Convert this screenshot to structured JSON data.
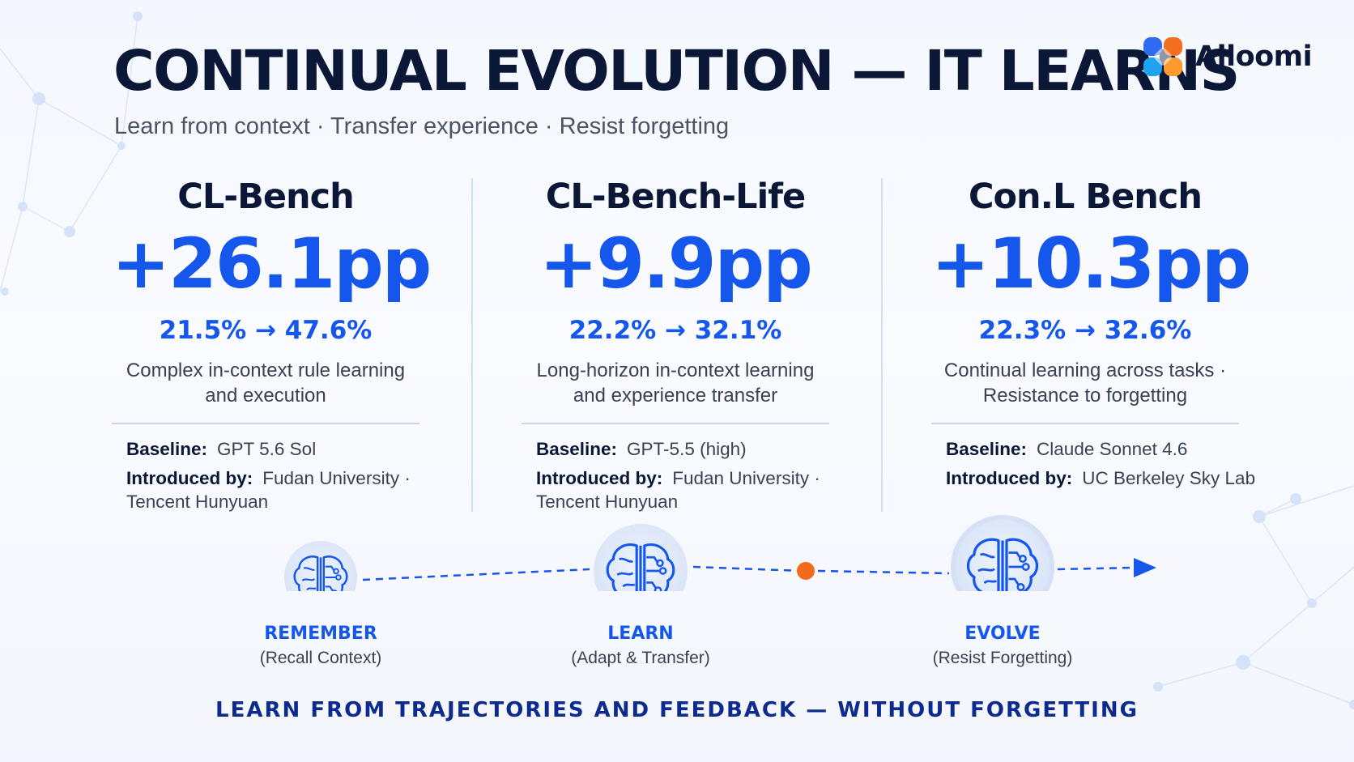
{
  "header": {
    "title": "CONTINUAL EVOLUTION — IT LEARNS",
    "subtitle": "Learn from context · Transfer experience · Resist forgetting"
  },
  "brand": {
    "name": "Alloomi",
    "logo_colors": [
      "#2f6bf1",
      "#f37021",
      "#1fa3f0",
      "#ff9a2e"
    ]
  },
  "colors": {
    "accent": "#1557ec",
    "orange_marker": "#f26a1b",
    "heading": "#0b1736",
    "tagline": "#0d2a8e"
  },
  "benchmarks": [
    {
      "name": "CL-Bench",
      "delta": "+26.1pp",
      "range": "21.5% → 47.6%",
      "desc_lines": [
        "Complex in-context rule learning",
        "and execution"
      ],
      "baseline_label": "Baseline:",
      "baseline": "GPT 5.6 Sol",
      "introduced_label": "Introduced by:",
      "introduced_lines": [
        "Fudan University ·",
        "Tencent Hunyuan"
      ]
    },
    {
      "name": "CL-Bench-Life",
      "delta": "+9.9pp",
      "range": "22.2% → 32.1%",
      "desc_lines": [
        "Long-horizon in-context learning",
        "and experience transfer"
      ],
      "baseline_label": "Baseline:",
      "baseline": "GPT-5.5 (high)",
      "introduced_label": "Introduced by:",
      "introduced_lines": [
        "Fudan University ·",
        "Tencent Hunyuan"
      ]
    },
    {
      "name": "Con.L Bench",
      "delta": "+10.3pp",
      "range": "22.3% → 32.6%",
      "desc_lines": [
        "Continual learning across tasks ·",
        "Resistance to forgetting"
      ],
      "baseline_label": "Baseline:",
      "baseline": "Claude Sonnet 4.6",
      "introduced_label": "Introduced by:",
      "introduced_lines": [
        "UC Berkeley Sky Lab"
      ]
    }
  ],
  "timeline": {
    "stages": [
      {
        "name": "REMEMBER",
        "sub": "(Recall Context)",
        "icon": "brain-circuit-icon"
      },
      {
        "name": "LEARN",
        "sub": "(Adapt & Transfer)",
        "icon": "brain-circuit-icon"
      },
      {
        "name": "EVOLVE",
        "sub": "(Resist Forgetting)",
        "icon": "brain-circuit-icon"
      }
    ]
  },
  "tagline": "LEARN FROM TRAJECTORIES AND FEEDBACK — WITHOUT FORGETTING"
}
